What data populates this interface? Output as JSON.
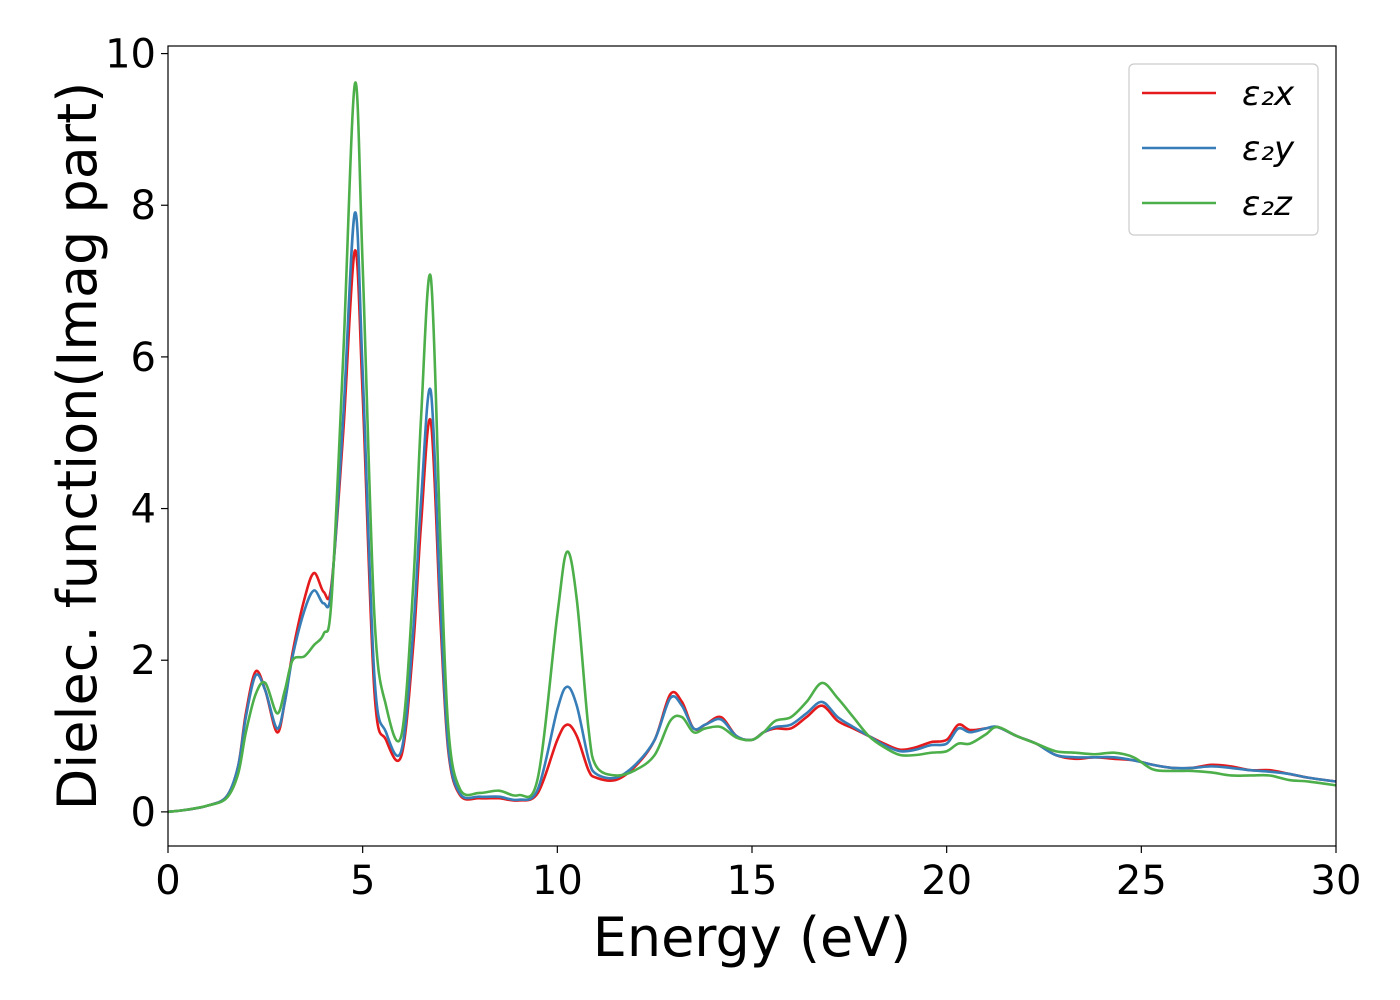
{
  "chart_data": {
    "type": "line",
    "xlabel": "Energy (eV)",
    "ylabel": "Dielec. function(Imag part)",
    "xlim": [
      0,
      30
    ],
    "ylim": [
      -0.45,
      10.1
    ],
    "xticks": [
      0,
      5,
      10,
      15,
      20,
      25,
      30
    ],
    "yticks": [
      0,
      2,
      4,
      6,
      8,
      10
    ],
    "grid": false,
    "legend_position": "top-right",
    "series": [
      {
        "name": "ε₂x",
        "color": "#e41a1c",
        "x": [
          0,
          0.5,
          1.0,
          1.5,
          1.8,
          2.0,
          2.25,
          2.5,
          2.8,
          3.0,
          3.2,
          3.5,
          3.75,
          4.0,
          4.2,
          4.5,
          4.8,
          5.0,
          5.3,
          5.6,
          6.0,
          6.3,
          6.5,
          6.75,
          7.0,
          7.2,
          7.5,
          8.0,
          8.5,
          9.0,
          9.5,
          10.0,
          10.25,
          10.5,
          10.8,
          11.0,
          11.5,
          12.0,
          12.5,
          12.9,
          13.2,
          13.5,
          13.8,
          14.2,
          14.6,
          15.0,
          15.3,
          15.6,
          16.0,
          16.4,
          16.8,
          17.2,
          17.6,
          18.0,
          18.4,
          18.8,
          19.2,
          19.6,
          20.0,
          20.3,
          20.6,
          21.0,
          21.3,
          21.8,
          22.3,
          22.8,
          23.3,
          23.8,
          24.3,
          24.8,
          25.3,
          25.8,
          26.3,
          26.8,
          27.3,
          27.8,
          28.3,
          28.8,
          29.3,
          30.0
        ],
        "values": [
          0.0,
          0.03,
          0.08,
          0.2,
          0.6,
          1.3,
          1.85,
          1.6,
          1.05,
          1.45,
          2.1,
          2.8,
          3.15,
          2.9,
          3.0,
          5.0,
          7.4,
          5.5,
          1.6,
          0.95,
          0.75,
          2.2,
          3.8,
          5.15,
          2.5,
          0.8,
          0.22,
          0.18,
          0.18,
          0.15,
          0.25,
          0.95,
          1.15,
          1.0,
          0.55,
          0.45,
          0.42,
          0.6,
          0.95,
          1.55,
          1.45,
          1.1,
          1.15,
          1.25,
          1.0,
          0.95,
          1.05,
          1.1,
          1.1,
          1.25,
          1.4,
          1.2,
          1.1,
          1.0,
          0.9,
          0.82,
          0.85,
          0.92,
          0.95,
          1.15,
          1.08,
          1.1,
          1.12,
          1.0,
          0.9,
          0.75,
          0.7,
          0.72,
          0.7,
          0.68,
          0.62,
          0.58,
          0.58,
          0.62,
          0.6,
          0.55,
          0.55,
          0.5,
          0.45,
          0.4
        ]
      },
      {
        "name": "ε₂y",
        "color": "#377eb8",
        "x": [
          0,
          0.5,
          1.0,
          1.5,
          1.8,
          2.0,
          2.25,
          2.5,
          2.8,
          3.0,
          3.2,
          3.5,
          3.75,
          4.0,
          4.2,
          4.5,
          4.8,
          5.0,
          5.3,
          5.6,
          6.0,
          6.3,
          6.5,
          6.75,
          7.0,
          7.2,
          7.5,
          8.0,
          8.5,
          9.0,
          9.5,
          10.0,
          10.25,
          10.5,
          10.8,
          11.0,
          11.5,
          12.0,
          12.5,
          12.9,
          13.2,
          13.5,
          13.8,
          14.2,
          14.6,
          15.0,
          15.3,
          15.6,
          16.0,
          16.4,
          16.8,
          17.2,
          17.6,
          18.0,
          18.4,
          18.8,
          19.2,
          19.6,
          20.0,
          20.3,
          20.6,
          21.0,
          21.3,
          21.8,
          22.3,
          22.8,
          23.3,
          23.8,
          24.3,
          24.8,
          25.3,
          25.8,
          26.3,
          26.8,
          27.3,
          27.8,
          28.3,
          28.8,
          29.3,
          30.0
        ],
        "values": [
          0.0,
          0.03,
          0.08,
          0.2,
          0.6,
          1.25,
          1.8,
          1.6,
          1.1,
          1.45,
          2.05,
          2.65,
          2.92,
          2.75,
          2.95,
          5.2,
          7.9,
          5.8,
          1.8,
          1.05,
          0.82,
          2.4,
          4.1,
          5.55,
          2.7,
          0.85,
          0.24,
          0.2,
          0.2,
          0.16,
          0.3,
          1.35,
          1.65,
          1.4,
          0.7,
          0.5,
          0.45,
          0.62,
          0.95,
          1.5,
          1.4,
          1.1,
          1.15,
          1.22,
          1.0,
          0.95,
          1.05,
          1.12,
          1.15,
          1.3,
          1.45,
          1.25,
          1.12,
          1.0,
          0.88,
          0.8,
          0.82,
          0.88,
          0.9,
          1.1,
          1.05,
          1.1,
          1.12,
          1.0,
          0.9,
          0.75,
          0.72,
          0.72,
          0.72,
          0.68,
          0.62,
          0.58,
          0.58,
          0.6,
          0.58,
          0.55,
          0.53,
          0.5,
          0.45,
          0.4
        ]
      },
      {
        "name": "ε₂z",
        "color": "#4daf4a",
        "x": [
          0,
          0.5,
          1.0,
          1.5,
          1.8,
          2.0,
          2.25,
          2.5,
          2.8,
          3.0,
          3.2,
          3.5,
          3.75,
          4.0,
          4.2,
          4.5,
          4.8,
          5.0,
          5.3,
          5.6,
          6.0,
          6.3,
          6.5,
          6.75,
          7.0,
          7.2,
          7.5,
          8.0,
          8.5,
          9.0,
          9.5,
          10.0,
          10.25,
          10.5,
          10.8,
          11.0,
          11.5,
          12.0,
          12.5,
          12.9,
          13.2,
          13.5,
          13.8,
          14.2,
          14.6,
          15.0,
          15.3,
          15.6,
          16.0,
          16.4,
          16.8,
          17.2,
          17.6,
          18.0,
          18.4,
          18.8,
          19.2,
          19.6,
          20.0,
          20.3,
          20.6,
          21.0,
          21.3,
          21.8,
          22.3,
          22.8,
          23.3,
          23.8,
          24.3,
          24.8,
          25.3,
          25.8,
          26.3,
          26.8,
          27.3,
          27.8,
          28.3,
          28.8,
          29.3,
          30.0
        ],
        "values": [
          0.0,
          0.03,
          0.08,
          0.18,
          0.5,
          1.05,
          1.55,
          1.7,
          1.3,
          1.6,
          2.0,
          2.05,
          2.2,
          2.35,
          2.8,
          6.0,
          9.6,
          7.2,
          2.6,
          1.4,
          1.02,
          3.0,
          5.2,
          7.05,
          3.5,
          1.1,
          0.3,
          0.25,
          0.28,
          0.22,
          0.45,
          2.6,
          3.43,
          2.8,
          1.1,
          0.6,
          0.48,
          0.55,
          0.75,
          1.2,
          1.25,
          1.05,
          1.1,
          1.12,
          0.98,
          0.95,
          1.05,
          1.2,
          1.25,
          1.45,
          1.7,
          1.5,
          1.25,
          1.0,
          0.85,
          0.75,
          0.75,
          0.78,
          0.8,
          0.9,
          0.9,
          1.02,
          1.12,
          1.0,
          0.9,
          0.8,
          0.78,
          0.76,
          0.78,
          0.72,
          0.56,
          0.54,
          0.54,
          0.52,
          0.48,
          0.48,
          0.48,
          0.42,
          0.4,
          0.35
        ]
      }
    ]
  }
}
